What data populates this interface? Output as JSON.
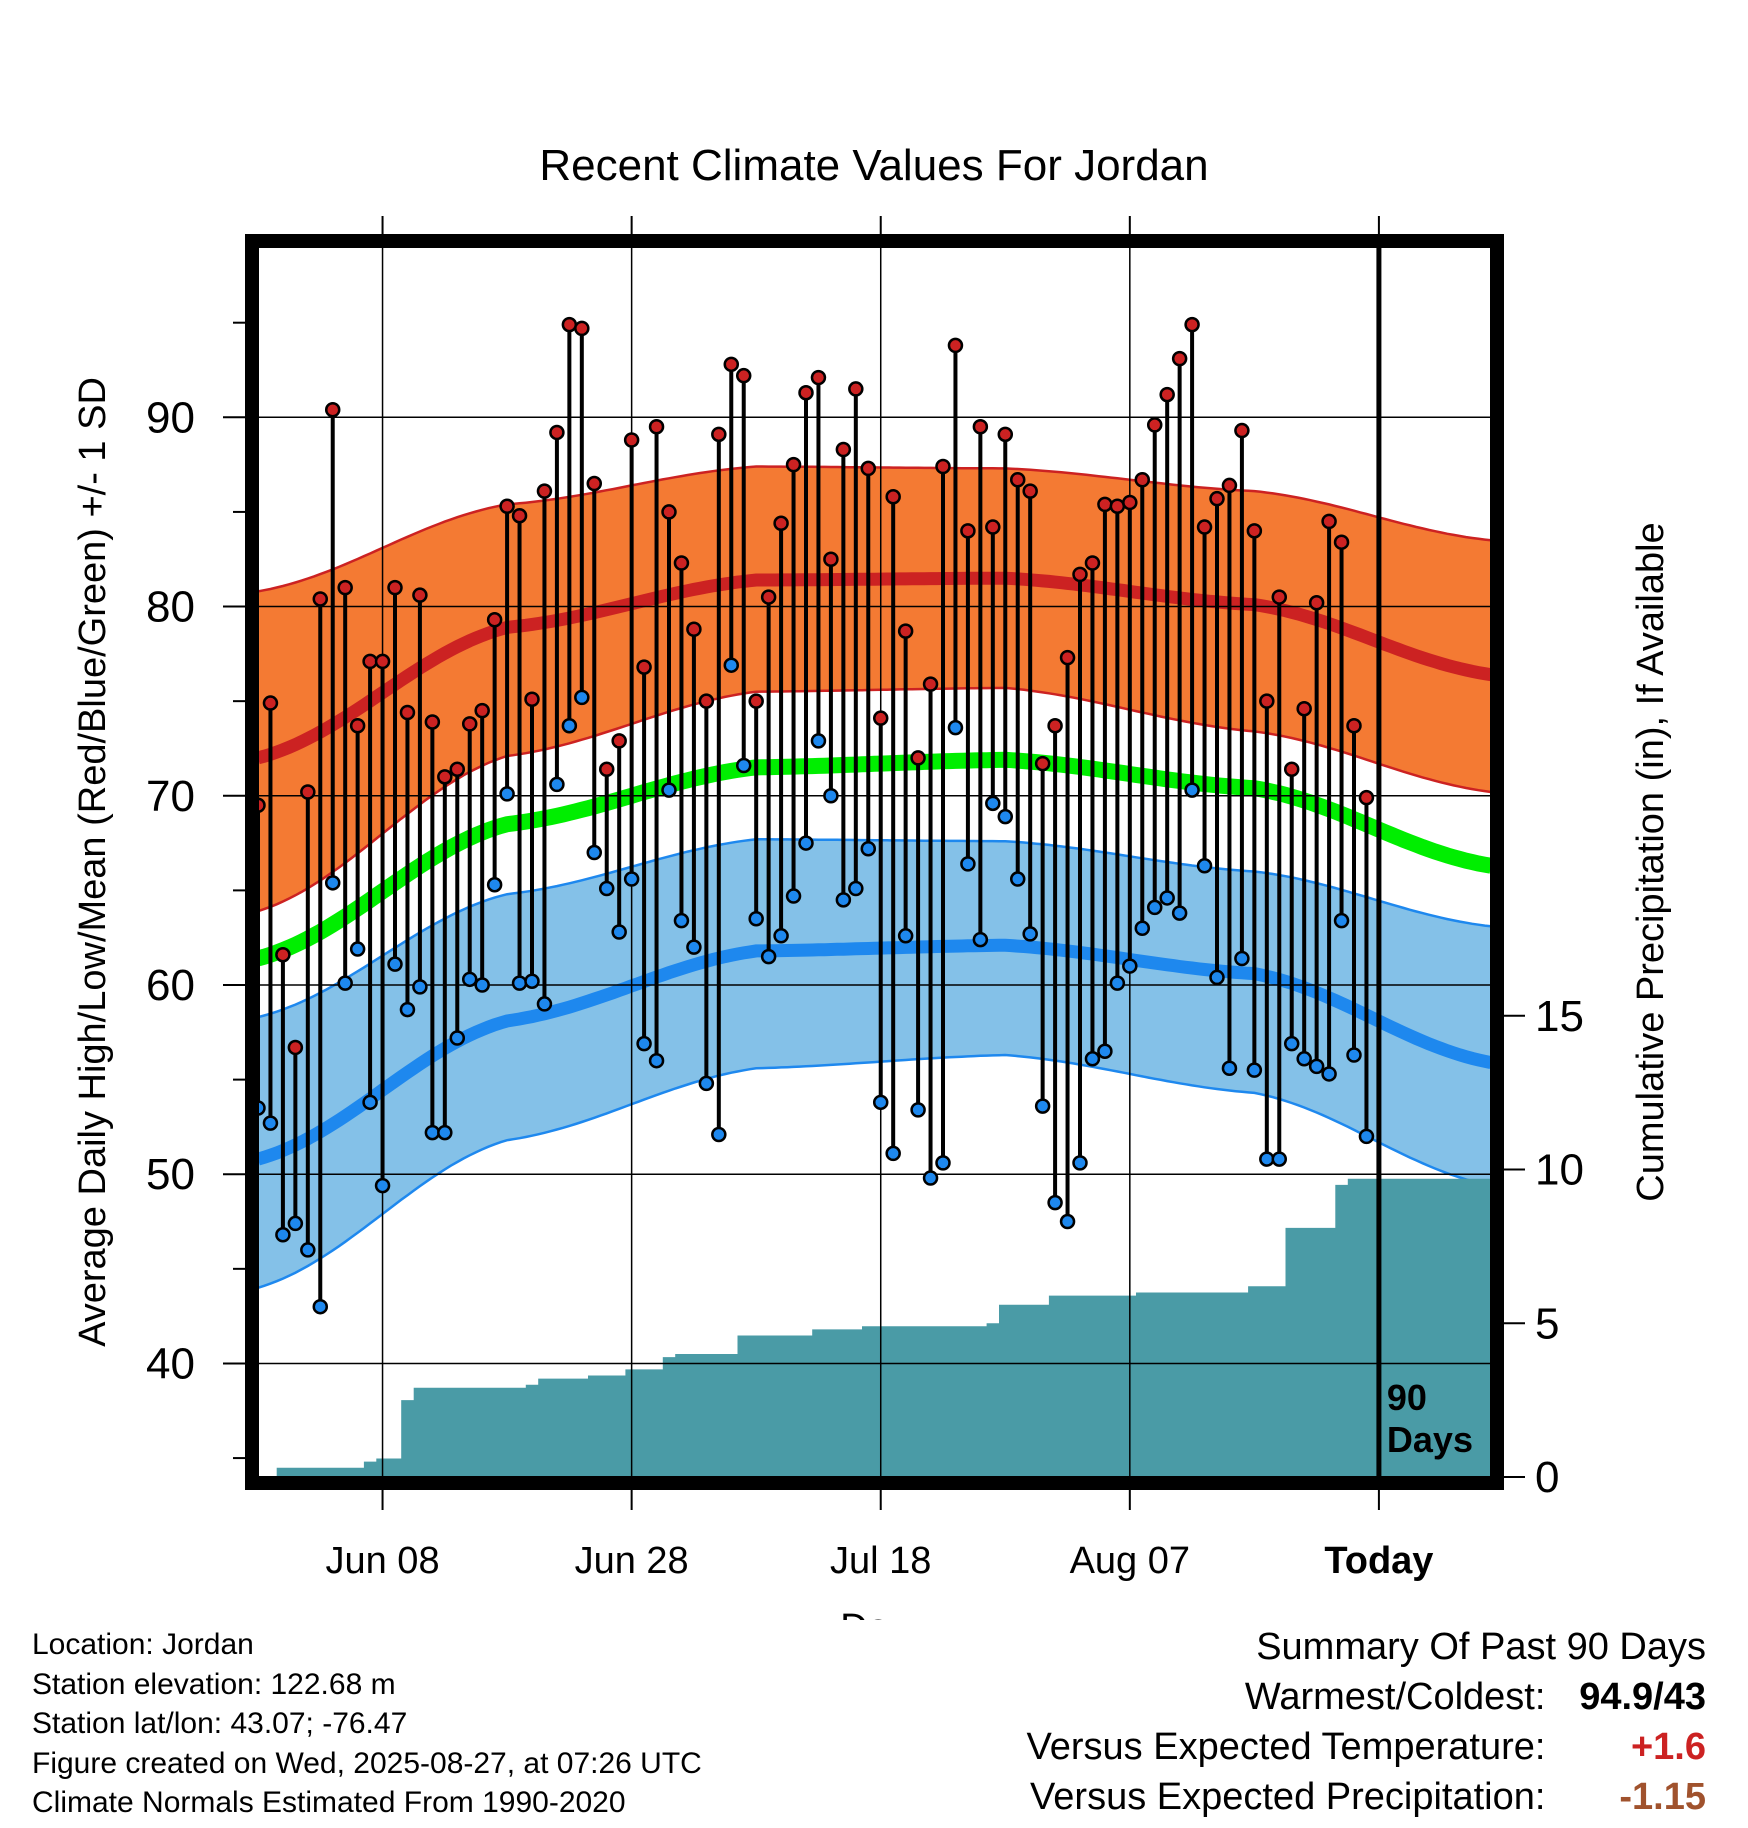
{
  "chart_data": {
    "type": "line",
    "title": "Recent Climate Values For Jordan",
    "xlabel": "Day",
    "ylabel": "Average Daily High/Low/Mean (Red/Blue/Green) +/- 1 SD",
    "y2label": "Cumulative Precipitation (in), If Available",
    "x_start": "2025-05-29",
    "x_end": "2025-09-05",
    "today": "2025-08-27",
    "ylim": [
      34,
      99
    ],
    "y2lim": [
      0,
      40
    ],
    "x_ticks": [
      {
        "date": "2025-06-08",
        "label": "Jun 08"
      },
      {
        "date": "2025-06-28",
        "label": "Jun 28"
      },
      {
        "date": "2025-07-18",
        "label": "Jul 18"
      },
      {
        "date": "2025-08-07",
        "label": "Aug 07"
      },
      {
        "date": "2025-08-27",
        "label": "Today"
      }
    ],
    "y_ticks": [
      40,
      50,
      60,
      70,
      80,
      90
    ],
    "y2_ticks": [
      0,
      5,
      10,
      15
    ],
    "today_label": [
      "90",
      "Days"
    ],
    "colors": {
      "high_mean": "#cc2222",
      "high_band": "#f47a33",
      "low_mean": "#1e88ee",
      "low_band": "#84c1e8",
      "mean": "#00ee00",
      "precip": "#4a9ba6",
      "high_dot": "#cc2222",
      "low_dot": "#1e88ee"
    },
    "normal_x": [
      "2025-05-29",
      "2025-06-18",
      "2025-07-08",
      "2025-07-28",
      "2025-08-17",
      "2025-09-05"
    ],
    "normal_high_mean": [
      72.0,
      78.9,
      81.4,
      81.5,
      80.1,
      76.4
    ],
    "normal_high_sd_upper": [
      80.8,
      85.4,
      87.4,
      87.3,
      86.1,
      83.5
    ],
    "normal_high_sd_lower": [
      63.9,
      72.1,
      75.5,
      75.7,
      73.4,
      70.2
    ],
    "normal_low_mean": [
      50.8,
      58.1,
      61.8,
      62.1,
      60.6,
      55.9
    ],
    "normal_low_sd_upper": [
      58.3,
      64.8,
      67.7,
      67.6,
      66.0,
      63.1
    ],
    "normal_low_sd_lower": [
      44.0,
      51.8,
      55.6,
      56.3,
      54.3,
      49.4
    ],
    "normal_mean": [
      61.4,
      68.5,
      71.5,
      71.9,
      70.4,
      66.3
    ],
    "series": [
      {
        "name": "High",
        "start": "2025-05-29",
        "values": [
          69.5,
          74.9,
          61.6,
          56.7,
          70.2,
          80.4,
          90.4,
          81.0,
          73.7,
          77.1,
          77.1,
          81.0,
          74.4,
          80.6,
          73.9,
          71.0,
          71.4,
          73.8,
          74.5,
          79.3,
          85.3,
          84.8,
          75.1,
          86.1,
          89.2,
          94.9,
          94.7,
          86.5,
          71.4,
          72.9,
          88.8,
          76.8,
          89.5,
          85.0,
          82.3,
          78.8,
          75.0,
          89.1,
          92.8,
          92.2,
          75.0,
          80.5,
          84.4,
          87.5,
          91.3,
          92.1,
          82.5,
          88.3,
          91.5,
          87.3,
          74.1,
          85.8,
          78.7,
          72.0,
          75.9,
          87.4,
          93.8,
          84.0,
          89.5,
          84.2,
          89.1,
          86.7,
          86.1,
          71.7,
          73.7,
          77.3,
          81.7,
          82.3,
          85.4,
          85.3,
          85.5,
          86.7,
          89.6,
          91.2,
          93.1,
          94.9,
          84.2,
          85.7,
          86.4,
          89.3,
          84.0,
          75.0,
          80.5,
          71.4,
          74.6,
          80.2,
          84.5,
          83.4,
          73.7,
          69.9
        ]
      },
      {
        "name": "Low",
        "start": "2025-05-29",
        "values": [
          53.5,
          52.7,
          46.8,
          47.4,
          46.0,
          43.0,
          65.4,
          60.1,
          61.9,
          53.8,
          49.4,
          61.1,
          58.7,
          59.9,
          52.2,
          52.2,
          57.2,
          60.3,
          60.0,
          65.3,
          70.1,
          60.1,
          60.2,
          59.0,
          70.6,
          73.7,
          75.2,
          67.0,
          65.1,
          62.8,
          65.6,
          56.9,
          56.0,
          70.3,
          63.4,
          62.0,
          54.8,
          52.1,
          76.9,
          71.6,
          63.5,
          61.5,
          62.6,
          64.7,
          67.5,
          72.9,
          70.0,
          64.5,
          65.1,
          67.2,
          53.8,
          51.1,
          62.6,
          53.4,
          49.8,
          50.6,
          73.6,
          66.4,
          62.4,
          69.6,
          68.9,
          65.6,
          62.7,
          53.6,
          48.5,
          47.5,
          50.6,
          56.1,
          56.5,
          60.1,
          61.0,
          63.0,
          64.1,
          64.6,
          63.8,
          70.3,
          66.3,
          60.4,
          55.6,
          61.4,
          55.5,
          50.8,
          50.8,
          56.9,
          56.1,
          55.7,
          55.3,
          63.4,
          56.3,
          52.0
        ]
      },
      {
        "name": "Cumulative Precipitation",
        "axis": "y2",
        "start": "2025-05-29",
        "values": [
          0.0,
          0.0,
          0.3,
          0.3,
          0.3,
          0.3,
          0.3,
          0.3,
          0.3,
          0.5,
          0.6,
          0.6,
          2.5,
          2.9,
          2.9,
          2.9,
          2.9,
          2.9,
          2.9,
          2.9,
          2.9,
          2.9,
          3.0,
          3.2,
          3.2,
          3.2,
          3.2,
          3.3,
          3.3,
          3.3,
          3.5,
          3.5,
          3.5,
          3.9,
          4.0,
          4.0,
          4.0,
          4.0,
          4.0,
          4.6,
          4.6,
          4.6,
          4.6,
          4.6,
          4.6,
          4.8,
          4.8,
          4.8,
          4.8,
          4.9,
          4.9,
          4.9,
          4.9,
          4.9,
          4.9,
          4.9,
          4.9,
          4.9,
          4.9,
          5.0,
          5.6,
          5.6,
          5.6,
          5.6,
          5.9,
          5.9,
          5.9,
          5.9,
          5.9,
          5.9,
          5.9,
          6.0,
          6.0,
          6.0,
          6.0,
          6.0,
          6.0,
          6.0,
          6.0,
          6.0,
          6.2,
          6.2,
          6.2,
          8.1,
          8.1,
          8.1,
          8.1,
          9.5,
          9.7,
          9.7,
          9.7,
          9.7,
          9.7,
          9.7,
          9.7,
          9.7,
          9.7,
          9.7,
          9.7,
          9.7
        ]
      }
    ]
  },
  "info": {
    "location": "Location: Jordan",
    "elevation": "Station elevation: 122.68 m",
    "latlon": "Station lat/lon: 43.07; -76.47",
    "created": "Figure created on Wed, 2025-08-27, at 07:26 UTC",
    "normals": "Climate Normals Estimated From 1990-2020"
  },
  "summary": {
    "title": "Summary Of Past 90 Days",
    "warmest_coldest_label": "Warmest/Coldest:",
    "warmest_coldest_value": "94.9/43",
    "temp_label": "Versus Expected Temperature:",
    "temp_value": "+1.6",
    "temp_value_color": "#cc2222",
    "precip_label": "Versus Expected Precipitation:",
    "precip_value": "-1.15",
    "precip_value_color": "#a0522d"
  }
}
